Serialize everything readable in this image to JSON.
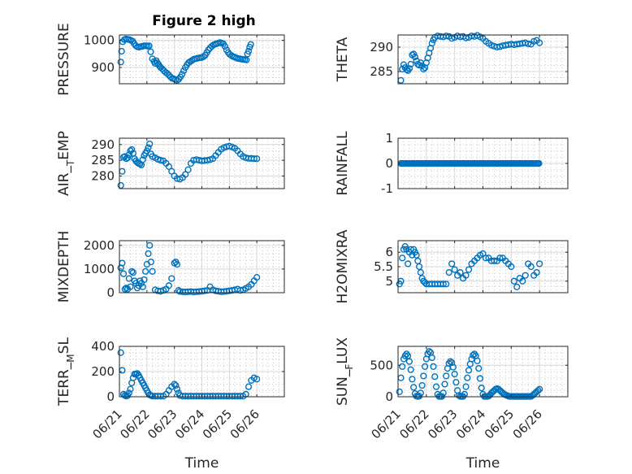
{
  "figure": {
    "title": "Figure 2 high",
    "accent_color": "#0072BD"
  },
  "chart_data": [
    {
      "type": "scatter",
      "ylabel": "PRESSURE",
      "xlabel": "",
      "xlim": [
        0,
        6
      ],
      "xticks": [
        0,
        1,
        2,
        3,
        4,
        5,
        6
      ],
      "xtick_labels": [
        "06/21",
        "06/22",
        "06/23",
        "06/24",
        "06/25",
        "06/26"
      ],
      "ylim": [
        840,
        1020
      ],
      "yticks": [
        900,
        1000
      ],
      "grid": true,
      "x": [
        0.05,
        0.08,
        0.12,
        0.18,
        0.24,
        0.3,
        0.36,
        0.42,
        0.48,
        0.54,
        0.6,
        0.66,
        0.72,
        0.78,
        0.84,
        0.9,
        0.96,
        1.02,
        1.08,
        1.14,
        1.2,
        1.26,
        1.3,
        1.34,
        1.38,
        1.42,
        1.46,
        1.5,
        1.56,
        1.62,
        1.68,
        1.74,
        1.8,
        1.86,
        1.92,
        1.98,
        2.04,
        2.1,
        2.16,
        2.22,
        2.28,
        2.34,
        2.4,
        2.46,
        2.52,
        2.58,
        2.64,
        2.7,
        2.76,
        2.82,
        2.88,
        2.94,
        3.0,
        3.06,
        3.12,
        3.18,
        3.24,
        3.3,
        3.36,
        3.42,
        3.48,
        3.54,
        3.6,
        3.66,
        3.72,
        3.78,
        3.84,
        3.9,
        3.96,
        4.02,
        4.08,
        4.14,
        4.2,
        4.26,
        4.32,
        4.38,
        4.44,
        4.5,
        4.56,
        4.62,
        4.66,
        4.7,
        4.74,
        4.78
      ],
      "y": [
        920,
        960,
        995,
        1003,
        1005,
        1004,
        1003,
        1000,
        997,
        988,
        980,
        976,
        975,
        977,
        978,
        980,
        980,
        979,
        980,
        958,
        932,
        922,
        915,
        925,
        917,
        912,
        905,
        900,
        895,
        888,
        882,
        878,
        872,
        865,
        860,
        858,
        855,
        853,
        857,
        865,
        875,
        888,
        900,
        910,
        918,
        922,
        926,
        930,
        932,
        933,
        935,
        936,
        937,
        940,
        945,
        955,
        965,
        972,
        978,
        983,
        986,
        988,
        990,
        992,
        990,
        988,
        978,
        965,
        955,
        948,
        944,
        940,
        938,
        935,
        933,
        932,
        931,
        930,
        929,
        928,
        950,
        960,
        975,
        985
      ]
    },
    {
      "type": "scatter",
      "ylabel": "THETA",
      "xlabel": "",
      "xlim": [
        0,
        6
      ],
      "xticks": [
        0,
        1,
        2,
        3,
        4,
        5,
        6
      ],
      "xtick_labels": [
        "06/21",
        "06/22",
        "06/23",
        "06/24",
        "06/25",
        "06/26"
      ],
      "ylim": [
        282.5,
        292.5
      ],
      "yticks": [
        285,
        290
      ],
      "grid": true,
      "x": [
        0.1,
        0.15,
        0.2,
        0.25,
        0.3,
        0.35,
        0.4,
        0.45,
        0.5,
        0.55,
        0.6,
        0.65,
        0.7,
        0.75,
        0.8,
        0.85,
        0.9,
        0.95,
        1.0,
        1.05,
        1.1,
        1.15,
        1.2,
        1.25,
        1.3,
        1.4,
        1.5,
        1.6,
        1.7,
        1.8,
        1.9,
        2.0,
        2.1,
        2.2,
        2.3,
        2.4,
        2.5,
        2.6,
        2.7,
        2.8,
        2.9,
        3.0,
        3.1,
        3.2,
        3.3,
        3.4,
        3.5,
        3.6,
        3.7,
        3.8,
        3.9,
        4.0,
        4.1,
        4.2,
        4.3,
        4.4,
        4.5,
        4.6,
        4.7,
        4.8,
        4.9,
        5.0
      ],
      "y": [
        283.2,
        285.5,
        286.4,
        285.8,
        285.4,
        285.2,
        285.6,
        286.5,
        288.4,
        288.6,
        288.0,
        287.2,
        286.5,
        286.3,
        286.8,
        286.2,
        285.5,
        285.8,
        286.8,
        287.8,
        288.8,
        289.8,
        290.8,
        291.5,
        292.0,
        292.3,
        292.2,
        292.1,
        292.3,
        292.2,
        291.8,
        292.0,
        292.3,
        292.1,
        292.2,
        291.9,
        292.0,
        292.3,
        292.2,
        292.4,
        292.1,
        291.8,
        291.2,
        290.8,
        290.4,
        290.2,
        290.0,
        290.1,
        290.3,
        290.4,
        290.5,
        290.6,
        290.5,
        290.6,
        290.7,
        290.8,
        290.9,
        290.7,
        290.6,
        291.2,
        291.4,
        290.9
      ]
    },
    {
      "type": "scatter",
      "ylabel": "AIR_TEMP",
      "xlabel": "",
      "xlim": [
        0,
        6
      ],
      "xticks": [
        0,
        1,
        2,
        3,
        4,
        5,
        6
      ],
      "xtick_labels": [
        "06/21",
        "06/22",
        "06/23",
        "06/24",
        "06/25",
        "06/26"
      ],
      "ylim": [
        276,
        292
      ],
      "yticks": [
        280,
        285,
        290
      ],
      "grid": true,
      "x": [
        0.05,
        0.1,
        0.15,
        0.2,
        0.25,
        0.3,
        0.35,
        0.4,
        0.45,
        0.5,
        0.55,
        0.6,
        0.65,
        0.7,
        0.75,
        0.8,
        0.85,
        0.9,
        0.95,
        1.0,
        1.05,
        1.1,
        1.15,
        1.2,
        1.3,
        1.4,
        1.5,
        1.6,
        1.7,
        1.8,
        1.9,
        2.0,
        2.1,
        2.2,
        2.3,
        2.4,
        2.5,
        2.6,
        2.7,
        2.8,
        2.9,
        3.0,
        3.1,
        3.2,
        3.3,
        3.4,
        3.5,
        3.6,
        3.7,
        3.8,
        3.9,
        4.0,
        4.1,
        4.2,
        4.3,
        4.4,
        4.5,
        4.6,
        4.7,
        4.8,
        4.9,
        5.0
      ],
      "y": [
        277,
        281.5,
        286,
        286.2,
        285.5,
        285.8,
        286.8,
        288.0,
        288.4,
        287.2,
        285.5,
        284.8,
        284.3,
        284.0,
        283.8,
        283.5,
        285.2,
        286.5,
        287.2,
        288.0,
        289.0,
        290.2,
        287.0,
        286.2,
        285.8,
        285.3,
        285.0,
        284.8,
        284.0,
        283.0,
        281.5,
        280.0,
        279.2,
        279.0,
        279.5,
        280.5,
        282.0,
        284.0,
        285.0,
        285.2,
        285.0,
        284.8,
        284.9,
        285.0,
        285.2,
        285.5,
        286.5,
        287.5,
        288.5,
        289.0,
        289.3,
        289.5,
        289.2,
        288.8,
        288.0,
        287.0,
        286.2,
        285.8,
        285.6,
        285.6,
        285.5,
        285.5
      ]
    },
    {
      "type": "scatter",
      "ylabel": "RAINFALL",
      "xlabel": "",
      "xlim": [
        0,
        6
      ],
      "xticks": [
        0,
        1,
        2,
        3,
        4,
        5,
        6
      ],
      "xtick_labels": [
        "06/21",
        "06/22",
        "06/23",
        "06/24",
        "06/25",
        "06/26"
      ],
      "ylim": [
        -1,
        1
      ],
      "yticks": [
        -1,
        0,
        1
      ],
      "grid": true,
      "x_start": 0.1,
      "x_end": 5.0,
      "x_step": 0.04,
      "constant_y": 0
    },
    {
      "type": "scatter",
      "ylabel": "MIXDEPTH",
      "xlabel": "",
      "xlim": [
        0,
        6
      ],
      "xticks": [
        0,
        1,
        2,
        3,
        4,
        5,
        6
      ],
      "xtick_labels": [
        "06/21",
        "06/22",
        "06/23",
        "06/24",
        "06/25",
        "06/26"
      ],
      "ylim": [
        0,
        2200
      ],
      "yticks": [
        0,
        1000,
        2000
      ],
      "grid": true,
      "x": [
        0.05,
        0.1,
        0.15,
        0.2,
        0.25,
        0.3,
        0.35,
        0.4,
        0.45,
        0.5,
        0.55,
        0.6,
        0.65,
        0.7,
        0.75,
        0.8,
        0.85,
        0.9,
        0.95,
        1.0,
        1.05,
        1.1,
        1.15,
        1.2,
        1.3,
        1.4,
        1.5,
        1.6,
        1.7,
        1.8,
        1.9,
        2.0,
        2.05,
        2.1,
        2.15,
        2.2,
        2.3,
        2.4,
        2.5,
        2.6,
        2.7,
        2.8,
        2.9,
        3.0,
        3.1,
        3.2,
        3.3,
        3.4,
        3.5,
        3.6,
        3.7,
        3.8,
        3.9,
        4.0,
        4.1,
        4.2,
        4.3,
        4.4,
        4.5,
        4.6,
        4.7,
        4.8,
        4.9,
        5.0
      ],
      "y": [
        1050,
        1250,
        800,
        150,
        200,
        150,
        600,
        250,
        900,
        850,
        500,
        400,
        200,
        300,
        500,
        400,
        250,
        550,
        900,
        1200,
        1650,
        2000,
        1300,
        900,
        120,
        80,
        60,
        100,
        150,
        300,
        600,
        1250,
        1300,
        1200,
        100,
        50,
        40,
        30,
        40,
        50,
        30,
        40,
        50,
        60,
        80,
        100,
        250,
        120,
        80,
        60,
        40,
        50,
        60,
        80,
        100,
        120,
        150,
        100,
        120,
        180,
        250,
        350,
        500,
        650
      ]
    },
    {
      "type": "scatter",
      "ylabel": "H2OMIXRA",
      "xlabel": "",
      "xlim": [
        0,
        6
      ],
      "xticks": [
        0,
        1,
        2,
        3,
        4,
        5,
        6
      ],
      "xtick_labels": [
        "06/21",
        "06/22",
        "06/23",
        "06/24",
        "06/25",
        "06/26"
      ],
      "ylim": [
        4.6,
        6.4
      ],
      "yticks": [
        5,
        5.5,
        6
      ],
      "grid": true,
      "x": [
        0.05,
        0.1,
        0.15,
        0.2,
        0.25,
        0.3,
        0.35,
        0.4,
        0.45,
        0.5,
        0.55,
        0.6,
        0.65,
        0.7,
        0.75,
        0.8,
        0.85,
        0.9,
        0.95,
        1.0,
        1.1,
        1.2,
        1.3,
        1.4,
        1.5,
        1.6,
        1.7,
        1.8,
        1.9,
        2.0,
        2.1,
        2.2,
        2.3,
        2.4,
        2.5,
        2.6,
        2.7,
        2.8,
        2.9,
        3.0,
        3.1,
        3.2,
        3.3,
        3.4,
        3.5,
        3.6,
        3.7,
        3.8,
        3.9,
        4.0,
        4.1,
        4.2,
        4.3,
        4.4,
        4.5,
        4.6,
        4.7,
        4.8,
        4.9,
        5.0
      ],
      "y": [
        4.9,
        5.0,
        5.8,
        6.1,
        6.2,
        6.1,
        5.6,
        6.0,
        6.1,
        5.9,
        6.1,
        6.0,
        5.9,
        5.7,
        5.5,
        5.3,
        5.1,
        5.0,
        4.95,
        4.9,
        4.9,
        4.9,
        4.9,
        4.9,
        4.9,
        4.9,
        4.9,
        5.3,
        5.6,
        5.4,
        5.2,
        5.3,
        5.1,
        5.2,
        5.4,
        5.6,
        5.7,
        5.8,
        5.9,
        5.95,
        5.8,
        5.8,
        5.7,
        5.7,
        5.7,
        5.8,
        5.8,
        5.7,
        5.6,
        5.5,
        5.0,
        4.8,
        5.1,
        5.0,
        5.2,
        5.6,
        5.5,
        5.2,
        5.3,
        5.6
      ]
    },
    {
      "type": "scatter",
      "ylabel": "TERR_MSL",
      "xlabel": "Time",
      "xlim": [
        0,
        6
      ],
      "xticks": [
        0,
        1,
        2,
        3,
        4,
        5,
        6
      ],
      "xtick_labels": [
        "06/21",
        "06/22",
        "06/23",
        "06/24",
        "06/25",
        "06/26"
      ],
      "ylim": [
        0,
        400
      ],
      "yticks": [
        0,
        200,
        400
      ],
      "grid": true,
      "x": [
        0.05,
        0.1,
        0.15,
        0.2,
        0.25,
        0.3,
        0.35,
        0.4,
        0.45,
        0.5,
        0.55,
        0.6,
        0.65,
        0.7,
        0.75,
        0.8,
        0.85,
        0.9,
        0.95,
        1.0,
        1.05,
        1.1,
        1.15,
        1.2,
        1.3,
        1.4,
        1.5,
        1.6,
        1.7,
        1.8,
        1.9,
        2.0,
        2.05,
        2.1,
        2.15,
        2.2,
        2.3,
        2.4,
        2.5,
        2.6,
        2.7,
        2.8,
        2.9,
        3.0,
        3.1,
        3.2,
        3.3,
        3.4,
        3.5,
        3.6,
        3.7,
        3.8,
        3.9,
        4.0,
        4.1,
        4.2,
        4.3,
        4.4,
        4.5,
        4.6,
        4.7,
        4.8,
        4.9,
        5.0
      ],
      "y": [
        350,
        210,
        20,
        10,
        5,
        10,
        30,
        60,
        110,
        150,
        180,
        180,
        185,
        170,
        150,
        130,
        110,
        90,
        70,
        50,
        30,
        15,
        10,
        5,
        5,
        5,
        5,
        5,
        20,
        50,
        80,
        100,
        90,
        60,
        30,
        10,
        5,
        5,
        5,
        5,
        5,
        5,
        5,
        5,
        5,
        5,
        5,
        5,
        5,
        5,
        5,
        5,
        5,
        5,
        5,
        5,
        5,
        5,
        5,
        20,
        80,
        130,
        150,
        140
      ]
    },
    {
      "type": "scatter",
      "ylabel": "SUN_FLUX",
      "xlabel": "Time",
      "xlim": [
        0,
        6
      ],
      "xticks": [
        0,
        1,
        2,
        3,
        4,
        5,
        6
      ],
      "xtick_labels": [
        "06/21",
        "06/22",
        "06/23",
        "06/24",
        "06/25",
        "06/26"
      ],
      "ylim": [
        0,
        800
      ],
      "yticks": [
        0,
        500
      ],
      "grid": true,
      "x": [
        0.05,
        0.1,
        0.15,
        0.2,
        0.25,
        0.3,
        0.35,
        0.4,
        0.45,
        0.5,
        0.55,
        0.6,
        0.65,
        0.7,
        0.75,
        0.8,
        0.85,
        0.9,
        0.95,
        1.0,
        1.05,
        1.1,
        1.15,
        1.2,
        1.25,
        1.3,
        1.35,
        1.4,
        1.45,
        1.5,
        1.55,
        1.6,
        1.65,
        1.7,
        1.75,
        1.8,
        1.85,
        1.9,
        1.95,
        2.0,
        2.05,
        2.1,
        2.15,
        2.2,
        2.25,
        2.3,
        2.35,
        2.4,
        2.45,
        2.5,
        2.55,
        2.6,
        2.65,
        2.7,
        2.75,
        2.8,
        2.85,
        2.9,
        2.95,
        3.0,
        3.05,
        3.1,
        3.15,
        3.2,
        3.25,
        3.3,
        3.35,
        3.4,
        3.45,
        3.5,
        3.55,
        3.6,
        3.65,
        3.7,
        3.75,
        3.8,
        3.85,
        3.9,
        3.95,
        4.0,
        4.05,
        4.1,
        4.15,
        4.2,
        4.25,
        4.3,
        4.35,
        4.4,
        4.45,
        4.5,
        4.55,
        4.6,
        4.65,
        4.7,
        4.75,
        4.8,
        4.85,
        4.9,
        4.95,
        5.0
      ],
      "y": [
        80,
        300,
        480,
        600,
        650,
        680,
        650,
        560,
        430,
        280,
        150,
        50,
        10,
        5,
        10,
        60,
        180,
        330,
        480,
        600,
        680,
        720,
        700,
        620,
        480,
        320,
        160,
        40,
        5,
        5,
        5,
        60,
        200,
        330,
        450,
        530,
        560,
        540,
        470,
        360,
        230,
        100,
        20,
        5,
        5,
        5,
        40,
        160,
        300,
        420,
        520,
        600,
        660,
        680,
        650,
        570,
        450,
        290,
        140,
        40,
        5,
        5,
        5,
        10,
        30,
        60,
        80,
        100,
        120,
        130,
        120,
        100,
        80,
        60,
        40,
        30,
        20,
        10,
        5,
        5,
        5,
        5,
        5,
        5,
        5,
        5,
        5,
        5,
        5,
        5,
        5,
        5,
        5,
        5,
        20,
        40,
        60,
        80,
        100,
        120
      ]
    }
  ]
}
